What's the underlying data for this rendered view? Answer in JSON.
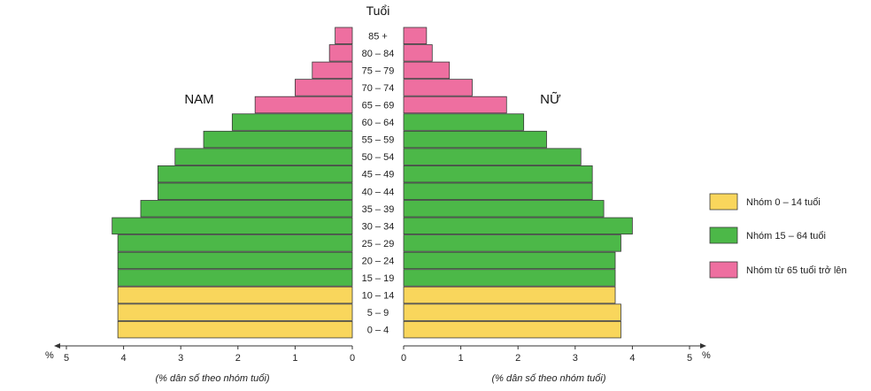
{
  "chart_data": {
    "type": "bar",
    "orientation": "horizontal-pyramid",
    "y_title": "Tuổi",
    "left_label": "NAM",
    "right_label": "NỮ",
    "x_unit": "%",
    "xlabel_left": "(% dân số theo nhóm tuổi)",
    "xlabel_right": "(% dân số theo nhóm tuổi)",
    "x_ticks": [
      "0",
      "1",
      "2",
      "3",
      "4",
      "5"
    ],
    "xlim": [
      0,
      5
    ],
    "age_groups": [
      "85 +",
      "80 – 84",
      "75 – 79",
      "70 – 74",
      "65 – 69",
      "60 – 64",
      "55 – 59",
      "50 – 54",
      "45 – 49",
      "40 – 44",
      "35 – 39",
      "30 – 34",
      "25 – 29",
      "20 – 24",
      "15 – 19",
      "10 – 14",
      "5 – 9",
      "0 – 4"
    ],
    "groups": [
      "old",
      "old",
      "old",
      "old",
      "old",
      "working",
      "working",
      "working",
      "working",
      "working",
      "working",
      "working",
      "working",
      "working",
      "working",
      "young",
      "young",
      "young"
    ],
    "series": [
      {
        "name": "NAM",
        "values": [
          0.3,
          0.4,
          0.7,
          1.0,
          1.7,
          2.1,
          2.6,
          3.1,
          3.4,
          3.4,
          3.7,
          4.2,
          4.1,
          4.1,
          4.1,
          4.1,
          4.1,
          4.1
        ]
      },
      {
        "name": "NỮ",
        "values": [
          0.4,
          0.5,
          0.8,
          1.2,
          1.8,
          2.1,
          2.5,
          3.1,
          3.3,
          3.3,
          3.5,
          4.0,
          3.8,
          3.7,
          3.7,
          3.7,
          3.8,
          3.8
        ]
      }
    ],
    "legend": {
      "position": "right",
      "items": [
        {
          "key": "young",
          "label": "Nhóm 0 – 14 tuổi",
          "color": "#f9d65c"
        },
        {
          "key": "working",
          "label": "Nhóm 15 – 64 tuổi",
          "color": "#4cb848"
        },
        {
          "key": "old",
          "label": "Nhóm từ 65 tuổi trở lên",
          "color": "#ee6fa0"
        }
      ]
    }
  }
}
